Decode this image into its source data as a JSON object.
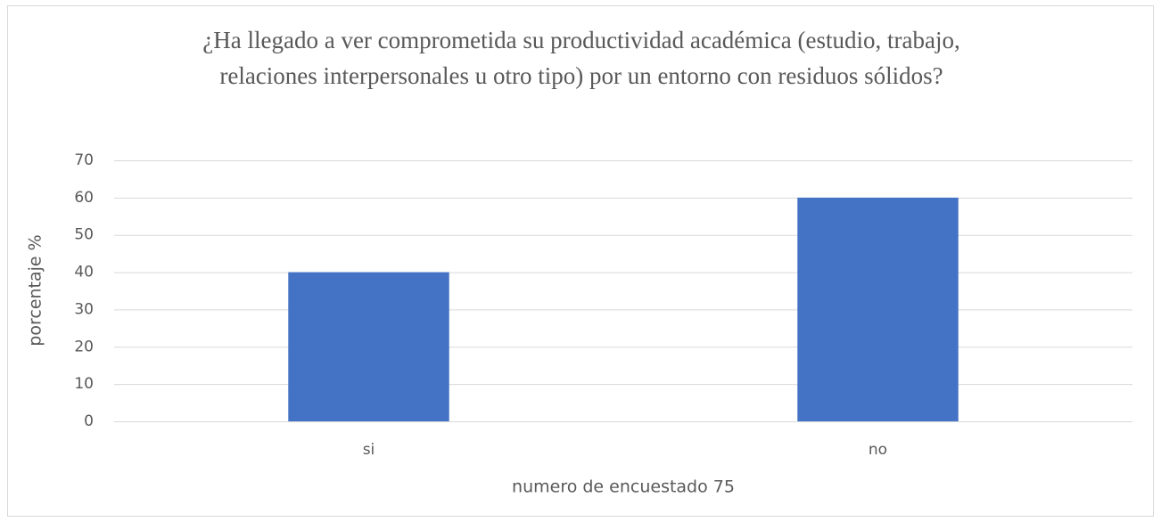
{
  "chart_data": {
    "type": "bar",
    "title": [
      "¿Ha llegado a ver comprometida su productividad académica (estudio, trabajo,",
      "relaciones interpersonales u otro tipo) por un entorno con residuos sólidos?"
    ],
    "x_label": "numero de encuestado 75",
    "y_label": "porcentaje %",
    "categories": [
      "si",
      "no"
    ],
    "values": [
      40,
      60
    ],
    "color": "#4472c4",
    "ylim": [
      0,
      70
    ],
    "yticks": [
      0,
      10,
      20,
      30,
      40,
      50,
      60,
      70
    ],
    "grid": true
  }
}
